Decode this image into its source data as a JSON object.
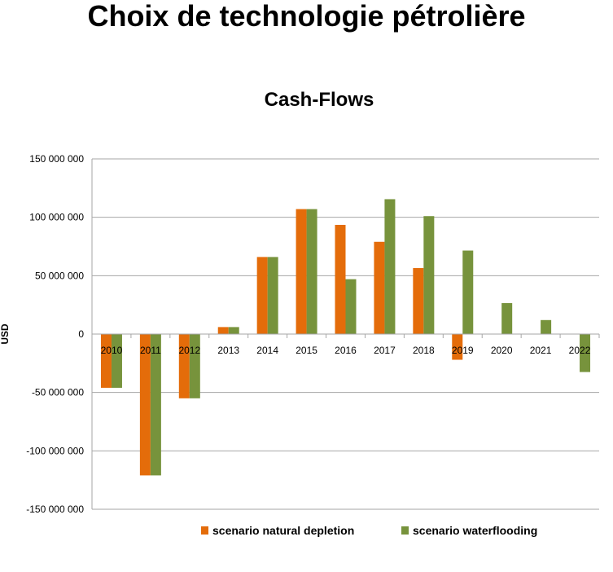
{
  "page_title": "Choix de technologie pétrolière",
  "chart_data": {
    "type": "bar",
    "title": "Cash-Flows",
    "xlabel": "",
    "ylabel": "USD",
    "categories": [
      "2010",
      "2011",
      "2012",
      "2013",
      "2014",
      "2015",
      "2016",
      "2017",
      "2018",
      "2019",
      "2020",
      "2021",
      "2022"
    ],
    "series": [
      {
        "name": "scenario natural depletion",
        "color": "#E46C0A",
        "values": [
          -46000000,
          -121000000,
          -55000000,
          6000000,
          66000000,
          107000000,
          93500000,
          79000000,
          56500000,
          -22000000,
          0,
          0,
          0
        ]
      },
      {
        "name": "scenario waterflooding",
        "color": "#77933C",
        "values": [
          -46000000,
          -121000000,
          -55000000,
          6000000,
          66000000,
          107000000,
          47000000,
          115500000,
          101000000,
          71500000,
          26500000,
          12000000,
          -32500000
        ]
      }
    ],
    "ylim": [
      -150000000,
      150000000
    ],
    "yticks": [
      150000000,
      100000000,
      50000000,
      0,
      -50000000,
      -100000000,
      -150000000
    ],
    "ytick_labels": [
      "150 000 000",
      "100 000 000",
      "50 000 000",
      "0",
      "-50 000 000",
      "-100 000 000",
      "-150 000 000"
    ],
    "grid": true,
    "legend_position": "bottom",
    "grid_color": "#A6A6A6"
  }
}
